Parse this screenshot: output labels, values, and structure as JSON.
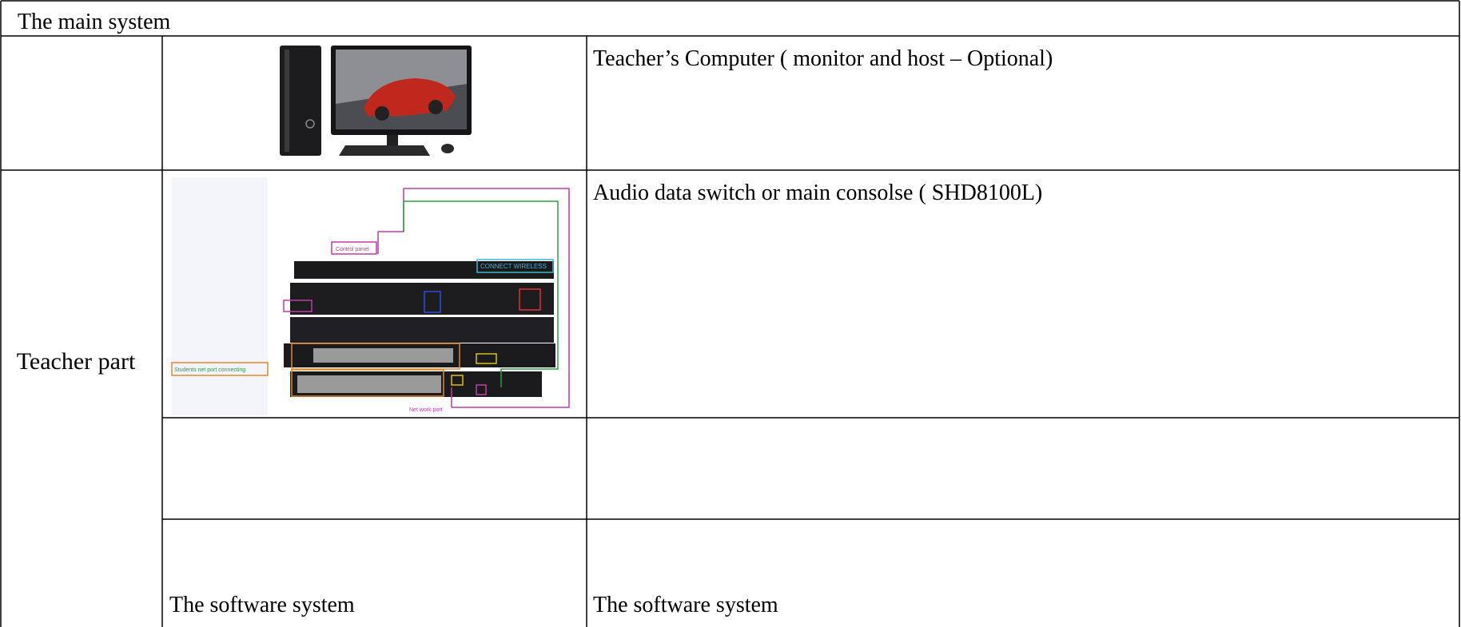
{
  "header": {
    "title": "The main system"
  },
  "table": {
    "section_label": "Teacher part",
    "rows": [
      {
        "description": "Teacher’s Computer ( monitor and host – Optional)"
      },
      {
        "description": "Audio data switch or main consolse ( SHD8100L)",
        "image_labels": [
          "Control panel",
          "CONNECT WIRELESS",
          "Students net port connecting",
          "Net work port"
        ]
      }
    ],
    "footer_cells": [
      "The software system",
      "The software system"
    ]
  }
}
